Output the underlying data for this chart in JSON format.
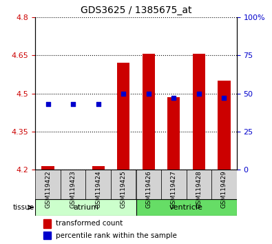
{
  "title": "GDS3625 / 1385675_at",
  "samples": [
    "GSM119422",
    "GSM119423",
    "GSM119424",
    "GSM119425",
    "GSM119426",
    "GSM119427",
    "GSM119428",
    "GSM119429"
  ],
  "transformed_counts": [
    4.215,
    4.202,
    4.215,
    4.62,
    4.655,
    4.485,
    4.655,
    4.55
  ],
  "percentile_ranks": [
    43,
    43,
    43,
    50,
    50,
    47,
    50,
    47
  ],
  "ylim_left": [
    4.2,
    4.8
  ],
  "ylim_right": [
    0,
    100
  ],
  "yticks_left": [
    4.2,
    4.35,
    4.5,
    4.65,
    4.8
  ],
  "yticks_right": [
    0,
    25,
    50,
    75,
    100
  ],
  "bar_color": "#cc0000",
  "dot_color": "#0000cc",
  "bar_base": 4.2,
  "tissue_groups": [
    {
      "label": "atrium",
      "start": 0,
      "end": 3,
      "color": "#ccffcc"
    },
    {
      "label": "ventricle",
      "start": 4,
      "end": 7,
      "color": "#66dd66"
    }
  ],
  "tissue_label": "tissue",
  "legend_bar_label": "transformed count",
  "legend_dot_label": "percentile rank within the sample",
  "left_tick_color": "#cc0000",
  "right_tick_color": "#0000cc",
  "bar_width": 0.5
}
